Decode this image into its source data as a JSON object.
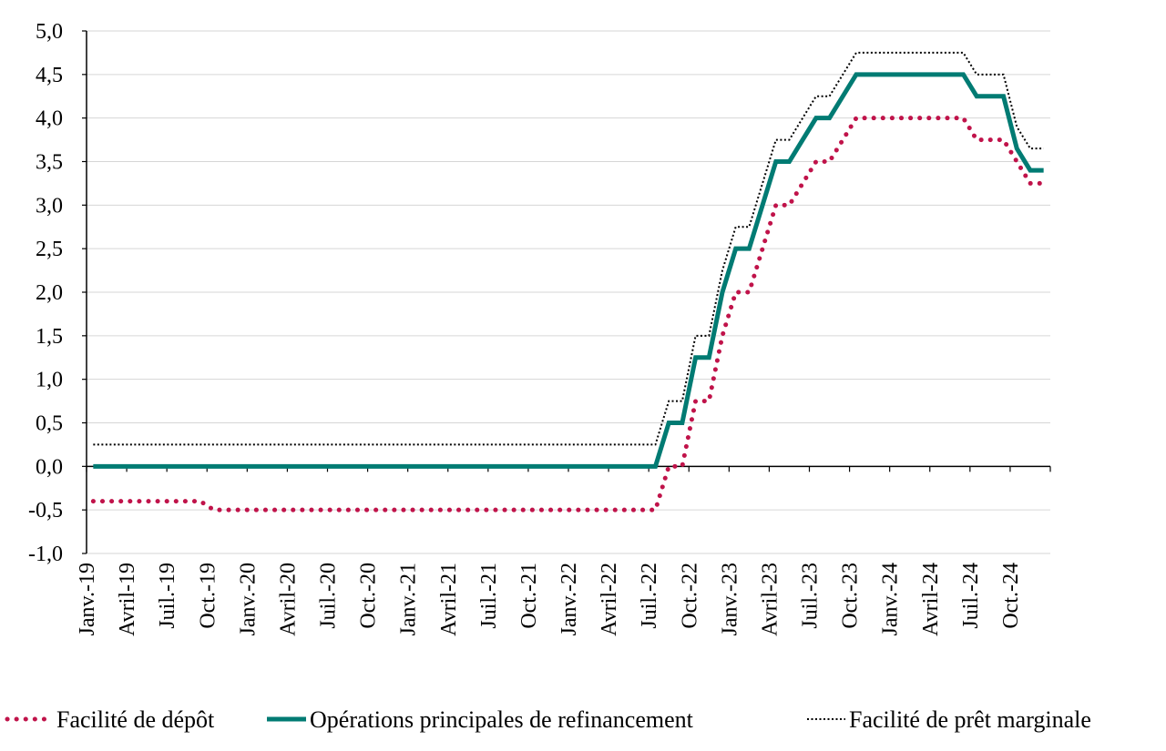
{
  "chart_data": {
    "type": "line",
    "title": "",
    "xlabel": "",
    "ylabel": "",
    "ylim": [
      -1.0,
      5.0
    ],
    "yticks": [
      "5,0",
      "4,5",
      "4,0",
      "3,5",
      "3,0",
      "2,5",
      "2,0",
      "1,5",
      "1,0",
      "0,5",
      "0,0",
      "-0,5",
      "-1,0"
    ],
    "ytick_values": [
      5.0,
      4.5,
      4.0,
      3.5,
      3.0,
      2.5,
      2.0,
      1.5,
      1.0,
      0.5,
      0.0,
      -0.5,
      -1.0
    ],
    "xticks": [
      "Janv.-19",
      "Avril-19",
      "Juil.-19",
      "Oct.-19",
      "Janv.-20",
      "Avril-20",
      "Juil.-20",
      "Oct.-20",
      "Janv.-21",
      "Avril-21",
      "Juil.-21",
      "Oct.-21",
      "Janv.-22",
      "Avril-22",
      "Juil.-22",
      "Oct.-22",
      "Janv.-23",
      "Avril-23",
      "Juil.-23",
      "Oct.-23",
      "Janv.-24",
      "Avril-24",
      "Juil.-24",
      "Oct.-24"
    ],
    "x_start": "2019-01",
    "x_end": "2024-12",
    "grid": true,
    "legend": "bottom",
    "series": [
      {
        "name": "Facilité de dépôt",
        "color": "#c0134a",
        "style": "dotted",
        "points": [
          [
            "2019-01",
            -0.4
          ],
          [
            "2019-09",
            -0.4
          ],
          [
            "2019-10",
            -0.5
          ],
          [
            "2022-07",
            -0.5
          ],
          [
            "2022-08",
            0.0
          ],
          [
            "2022-09",
            0.0
          ],
          [
            "2022-10",
            0.75
          ],
          [
            "2022-11",
            0.75
          ],
          [
            "2022-12",
            1.5
          ],
          [
            "2023-01",
            2.0
          ],
          [
            "2023-02",
            2.0
          ],
          [
            "2023-03",
            2.5
          ],
          [
            "2023-04",
            3.0
          ],
          [
            "2023-05",
            3.0
          ],
          [
            "2023-06",
            3.25
          ],
          [
            "2023-07",
            3.5
          ],
          [
            "2023-08",
            3.5
          ],
          [
            "2023-09",
            3.75
          ],
          [
            "2023-10",
            4.0
          ],
          [
            "2024-06",
            4.0
          ],
          [
            "2024-07",
            3.75
          ],
          [
            "2024-09",
            3.75
          ],
          [
            "2024-10",
            3.5
          ],
          [
            "2024-11",
            3.25
          ],
          [
            "2024-12",
            3.25
          ]
        ]
      },
      {
        "name": "Opérations principales de refinancement",
        "color": "#007b73",
        "style": "solid",
        "points": [
          [
            "2019-01",
            0.0
          ],
          [
            "2022-07",
            0.0
          ],
          [
            "2022-08",
            0.5
          ],
          [
            "2022-09",
            0.5
          ],
          [
            "2022-10",
            1.25
          ],
          [
            "2022-11",
            1.25
          ],
          [
            "2022-12",
            2.0
          ],
          [
            "2023-01",
            2.5
          ],
          [
            "2023-02",
            2.5
          ],
          [
            "2023-03",
            3.0
          ],
          [
            "2023-04",
            3.5
          ],
          [
            "2023-05",
            3.5
          ],
          [
            "2023-06",
            3.75
          ],
          [
            "2023-07",
            4.0
          ],
          [
            "2023-08",
            4.0
          ],
          [
            "2023-09",
            4.25
          ],
          [
            "2023-10",
            4.5
          ],
          [
            "2024-06",
            4.5
          ],
          [
            "2024-07",
            4.25
          ],
          [
            "2024-09",
            4.25
          ],
          [
            "2024-10",
            3.65
          ],
          [
            "2024-11",
            3.4
          ],
          [
            "2024-12",
            3.4
          ]
        ]
      },
      {
        "name": "Facilité de prêt marginale",
        "color": "#000000",
        "style": "fine-dotted",
        "points": [
          [
            "2019-01",
            0.25
          ],
          [
            "2022-07",
            0.25
          ],
          [
            "2022-08",
            0.75
          ],
          [
            "2022-09",
            0.75
          ],
          [
            "2022-10",
            1.5
          ],
          [
            "2022-11",
            1.5
          ],
          [
            "2022-12",
            2.25
          ],
          [
            "2023-01",
            2.75
          ],
          [
            "2023-02",
            2.75
          ],
          [
            "2023-03",
            3.25
          ],
          [
            "2023-04",
            3.75
          ],
          [
            "2023-05",
            3.75
          ],
          [
            "2023-06",
            4.0
          ],
          [
            "2023-07",
            4.25
          ],
          [
            "2023-08",
            4.25
          ],
          [
            "2023-09",
            4.5
          ],
          [
            "2023-10",
            4.75
          ],
          [
            "2024-06",
            4.75
          ],
          [
            "2024-07",
            4.5
          ],
          [
            "2024-09",
            4.5
          ],
          [
            "2024-10",
            3.9
          ],
          [
            "2024-11",
            3.65
          ],
          [
            "2024-12",
            3.65
          ]
        ]
      }
    ]
  }
}
